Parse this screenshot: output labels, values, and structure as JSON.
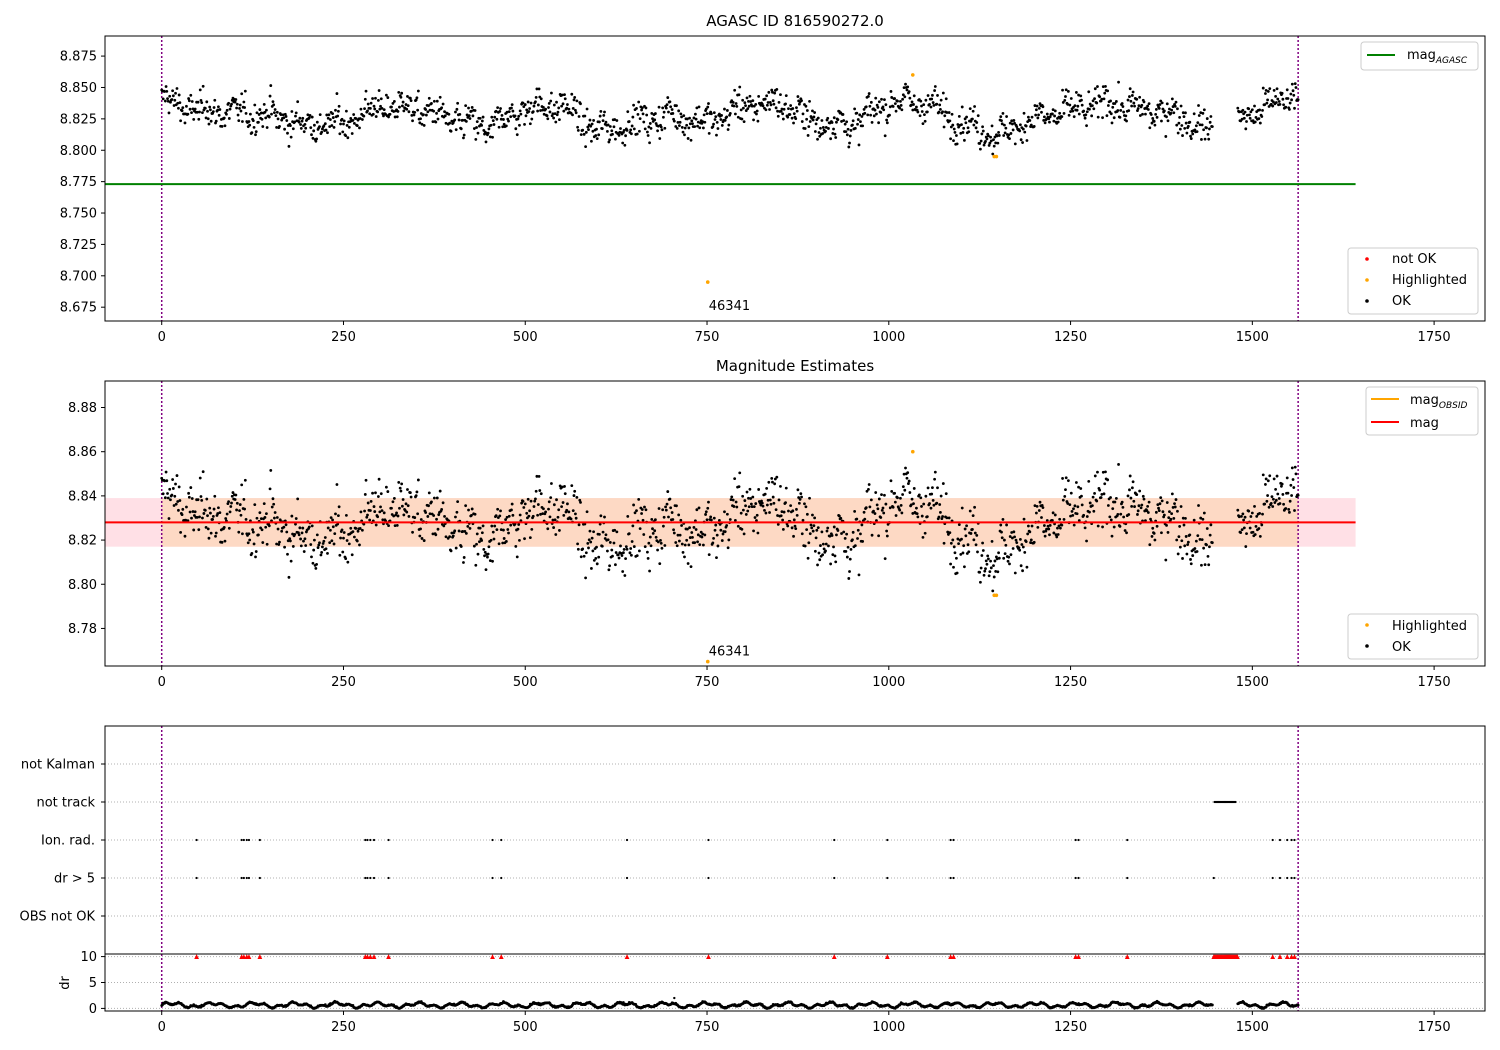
{
  "figure": {
    "panels": {
      "top": {
        "title": "AGASC ID 816590272.0",
        "legend_line": {
          "label": "mag",
          "subscript": "AGASC"
        },
        "legend_points": [
          {
            "label": "not OK",
            "color": "#ff0000"
          },
          {
            "label": "Highlighted",
            "color": "#ffa500"
          },
          {
            "label": "OK",
            "color": "#000000"
          }
        ],
        "annotation": "46341"
      },
      "middle": {
        "title": "Magnitude Estimates",
        "legend_lines": [
          {
            "label": "mag",
            "subscript": "OBSID",
            "color": "#ffa500"
          },
          {
            "label": "mag",
            "subscript": "",
            "color": "#ff0000"
          }
        ],
        "legend_points": [
          {
            "label": "Highlighted",
            "color": "#ffa500"
          },
          {
            "label": "OK",
            "color": "#000000"
          }
        ],
        "annotation": "46341"
      },
      "flags": {
        "categories": [
          "not Kalman",
          "not track",
          "Ion. rad.",
          "dr > 5",
          "OBS not OK"
        ]
      },
      "dr": {
        "ylabel": "dr"
      }
    },
    "colors": {
      "ok": "#000000",
      "highlighted": "#ffa500",
      "not_ok": "#ff0000",
      "agasc_line": "#008000",
      "mean_line": "#ff0000",
      "obsid_line": "#ffa500",
      "band_outer": "#ffe0e6",
      "band_inner": "#fdd9c4",
      "obs_boundary": "#800080"
    }
  },
  "chart_data": [
    {
      "type": "scatter",
      "title": "AGASC ID 816590272.0",
      "xlabel": "",
      "ylabel": "",
      "xlim": [
        -78,
        1820
      ],
      "ylim": [
        8.664,
        8.891
      ],
      "x_ticks": [
        0,
        250,
        500,
        750,
        1000,
        1250,
        1500,
        1750
      ],
      "y_ticks": [
        8.675,
        8.7,
        8.725,
        8.75,
        8.775,
        8.8,
        8.825,
        8.85,
        8.875
      ],
      "y_tick_labels": [
        "8.675",
        "8.700",
        "8.725",
        "8.750",
        "8.775",
        "8.800",
        "8.825",
        "8.850",
        "8.875"
      ],
      "legend": [
        "mag_AGASC",
        "not OK",
        "Highlighted",
        "OK"
      ],
      "lines": [
        {
          "name": "mag_AGASC",
          "y": 8.773,
          "x_range": [
            -78,
            1642
          ]
        }
      ],
      "obs_boundaries": [
        0,
        1563
      ],
      "gap": [
        1445,
        1480
      ],
      "ok_profile": {
        "x": [
          0,
          50,
          100,
          150,
          200,
          250,
          300,
          350,
          400,
          450,
          500,
          550,
          600,
          650,
          700,
          750,
          800,
          850,
          900,
          950,
          1000,
          1050,
          1100,
          1150,
          1200,
          1250,
          1300,
          1350,
          1400,
          1440,
          1480,
          1520,
          1563
        ],
        "y": [
          8.84,
          8.832,
          8.83,
          8.828,
          8.82,
          8.822,
          8.835,
          8.834,
          8.824,
          8.818,
          8.833,
          8.836,
          8.815,
          8.822,
          8.828,
          8.822,
          8.835,
          8.838,
          8.822,
          8.82,
          8.838,
          8.838,
          8.822,
          8.812,
          8.825,
          8.832,
          8.838,
          8.832,
          8.828,
          8.815,
          8.825,
          8.835,
          8.848
        ]
      },
      "highlighted_points": [
        {
          "x": 751,
          "y": 8.695
        },
        {
          "x": 1033,
          "y": 8.86
        },
        {
          "x": 1145,
          "y": 8.795
        },
        {
          "x": 1148,
          "y": 8.795
        }
      ],
      "annotations": [
        {
          "x": 751,
          "y": 8.695,
          "text": "46341"
        }
      ]
    },
    {
      "type": "scatter",
      "title": "Magnitude Estimates",
      "xlabel": "",
      "ylabel": "",
      "xlim": [
        -78,
        1820
      ],
      "ylim": [
        8.763,
        8.892
      ],
      "x_ticks": [
        0,
        250,
        500,
        750,
        1000,
        1250,
        1500,
        1750
      ],
      "y_ticks": [
        8.78,
        8.8,
        8.82,
        8.84,
        8.86,
        8.88
      ],
      "y_tick_labels": [
        "8.78",
        "8.80",
        "8.82",
        "8.84",
        "8.86",
        "8.88"
      ],
      "legend": [
        "mag_OBSID",
        "mag",
        "Highlighted",
        "OK"
      ],
      "mean_mag": 8.828,
      "band": [
        8.817,
        8.839
      ],
      "band_x_range": [
        -78,
        1642
      ],
      "obs_boundaries": [
        0,
        1563
      ],
      "highlighted_points": [
        {
          "x": 751,
          "y": 8.765
        },
        {
          "x": 1033,
          "y": 8.86
        },
        {
          "x": 1145,
          "y": 8.795
        },
        {
          "x": 1148,
          "y": 8.795
        }
      ],
      "annotations": [
        {
          "x": 751,
          "y": 8.765,
          "text": "46341"
        }
      ]
    },
    {
      "type": "scatter",
      "title": "",
      "xlim": [
        -78,
        1820
      ],
      "categories": [
        "not Kalman",
        "not track",
        "Ion. rad.",
        "dr > 5",
        "OBS not OK"
      ],
      "not_track_range": [
        1448,
        1478
      ],
      "ion_rad_x": [
        48,
        110,
        113,
        117,
        120,
        135,
        280,
        283,
        287,
        292,
        312,
        455,
        467,
        640,
        752,
        925,
        998,
        1085,
        1089,
        1257,
        1261,
        1328,
        1528,
        1538,
        1548,
        1554,
        1558
      ],
      "dr_gt_5_x": [
        48,
        110,
        113,
        117,
        120,
        135,
        280,
        283,
        287,
        292,
        312,
        455,
        467,
        640,
        752,
        925,
        998,
        1085,
        1089,
        1257,
        1261,
        1328,
        1447,
        1528,
        1538,
        1548,
        1554,
        1558
      ],
      "obs_boundaries": [
        0,
        1563
      ]
    },
    {
      "type": "scatter",
      "title": "",
      "xlabel": "",
      "ylabel": "dr",
      "xlim": [
        -78,
        1820
      ],
      "ylim": [
        -0.5,
        10.5
      ],
      "x_ticks": [
        0,
        250,
        500,
        750,
        1000,
        1250,
        1500,
        1750
      ],
      "y_ticks": [
        0,
        5,
        10
      ],
      "dr_marker_level": 10,
      "dr_marker_x": [
        48,
        110,
        113,
        117,
        120,
        135,
        280,
        283,
        287,
        292,
        312,
        455,
        467,
        640,
        752,
        925,
        998,
        1085,
        1089,
        1257,
        1261,
        1328,
        1528,
        1538,
        1548,
        1554,
        1558
      ],
      "dr_marker_range": [
        1447,
        1480
      ],
      "obs_boundaries": [
        0,
        1563
      ]
    }
  ]
}
